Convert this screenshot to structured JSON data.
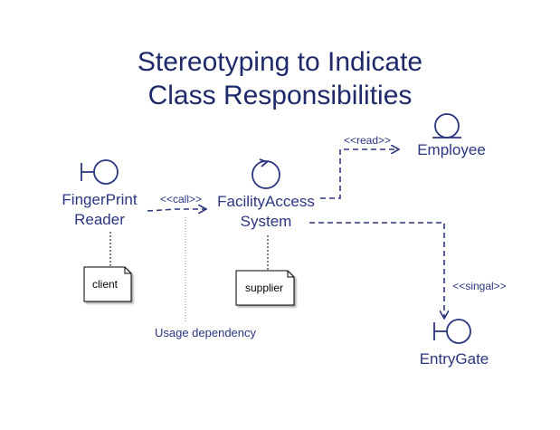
{
  "title": {
    "line1": "Stereotyping to Indicate",
    "line2": "Class Responsibilities"
  },
  "classes": {
    "fingerprint_reader": {
      "line1": "FingerPrint",
      "line2": "Reader",
      "icon": "boundary-icon"
    },
    "facility_access_system": {
      "line1": "FacilityAccess",
      "line2": "System",
      "icon": "control-icon"
    },
    "employee": {
      "label": "Employee",
      "icon": "entity-icon"
    },
    "entry_gate": {
      "label": "EntryGate",
      "icon": "boundary-icon"
    }
  },
  "dependencies": {
    "call": "<<call>>",
    "read": "<<read>>",
    "signal": "<<singal>>"
  },
  "notes": {
    "client": "client",
    "supplier": "supplier",
    "usage_dependency": "Usage dependency"
  },
  "colors": {
    "diagram": "#2b3580",
    "title": "#1f2a6b"
  }
}
